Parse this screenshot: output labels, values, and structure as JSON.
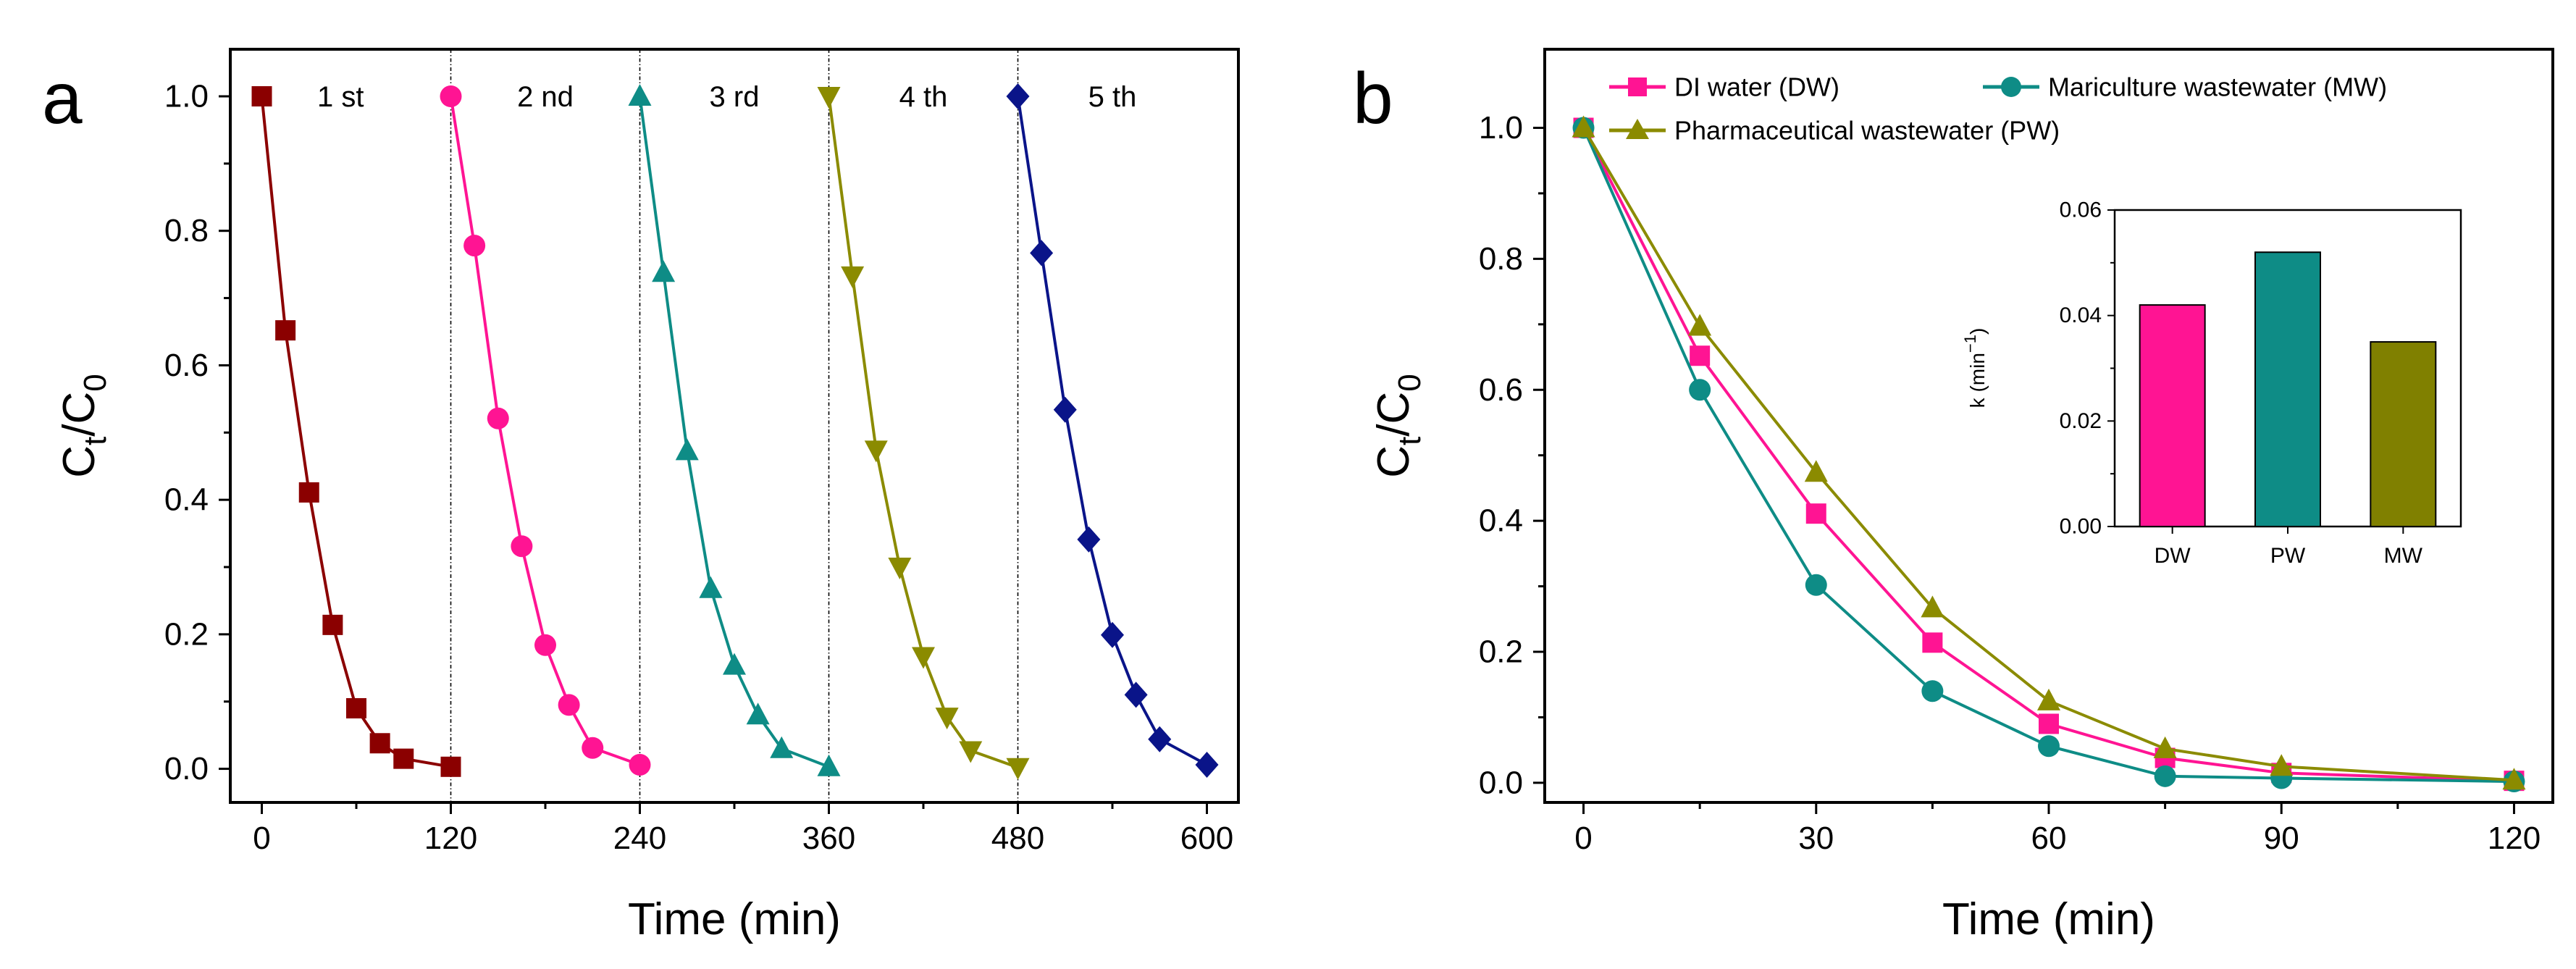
{
  "chart_data": [
    {
      "panel": "a",
      "type": "line",
      "xlabel": "Time (min)",
      "ylabel_main": "C",
      "ylabel_sub1": "t",
      "ylabel_sep": "/C",
      "ylabel_sub2": "0",
      "xlim": [
        -20,
        620
      ],
      "ylim": [
        -0.05,
        1.07
      ],
      "xticks": [
        0,
        120,
        240,
        360,
        480,
        600
      ],
      "xtick_labels": [
        "0",
        "120",
        "240",
        "360",
        "480",
        "600"
      ],
      "yticks": [
        0.0,
        0.2,
        0.4,
        0.6,
        0.8,
        1.0
      ],
      "ytick_labels": [
        "0.0",
        "0.2",
        "0.4",
        "0.6",
        "0.8",
        "1.0"
      ],
      "dividers_x": [
        120,
        240,
        360,
        480
      ],
      "series": [
        {
          "name": "1 st",
          "label": "1 st",
          "label_x": 50,
          "color": "#8B0000",
          "marker": "square",
          "x": [
            0,
            15,
            30,
            45,
            60,
            75,
            90,
            120
          ],
          "y": [
            1.0,
            0.652,
            0.411,
            0.214,
            0.09,
            0.038,
            0.015,
            0.003
          ]
        },
        {
          "name": "2 nd",
          "label": "2 nd",
          "label_x": 180,
          "color": "#FF1493",
          "marker": "circle",
          "x": [
            120,
            135,
            150,
            165,
            180,
            195,
            210,
            240
          ],
          "y": [
            1.0,
            0.778,
            0.521,
            0.331,
            0.184,
            0.095,
            0.031,
            0.006
          ]
        },
        {
          "name": "3 rd",
          "label": "3 rd",
          "label_x": 300,
          "color": "#0E8C86",
          "marker": "triangle-up",
          "x": [
            240,
            255,
            270,
            285,
            300,
            315,
            330,
            360
          ],
          "y": [
            1.0,
            0.738,
            0.473,
            0.268,
            0.154,
            0.08,
            0.03,
            0.003
          ]
        },
        {
          "name": "4 th",
          "label": "4 th",
          "label_x": 420,
          "color": "#8B8B00",
          "marker": "triangle-down",
          "x": [
            360,
            375,
            390,
            405,
            420,
            435,
            450,
            480
          ],
          "y": [
            1.0,
            0.733,
            0.474,
            0.3,
            0.167,
            0.077,
            0.027,
            0.002
          ]
        },
        {
          "name": "5 th",
          "label": "5 th",
          "label_x": 540,
          "color": "#0A1489",
          "marker": "diamond",
          "x": [
            480,
            495,
            510,
            525,
            540,
            555,
            570,
            600
          ],
          "y": [
            1.0,
            0.767,
            0.534,
            0.341,
            0.199,
            0.11,
            0.044,
            0.006
          ]
        }
      ]
    },
    {
      "panel": "b",
      "type": "line",
      "xlabel": "Time (min)",
      "ylabel_main": "C",
      "ylabel_sub1": "t",
      "ylabel_sep": "/C",
      "ylabel_sub2": "0",
      "xlim": [
        -5,
        125
      ],
      "ylim": [
        -0.03,
        1.12
      ],
      "xticks": [
        0,
        30,
        60,
        90,
        120
      ],
      "xtick_labels": [
        "0",
        "30",
        "60",
        "90",
        "120"
      ],
      "yticks": [
        0.0,
        0.2,
        0.4,
        0.6,
        0.8,
        1.0
      ],
      "ytick_labels": [
        "0.0",
        "0.2",
        "0.4",
        "0.6",
        "0.8",
        "1.0"
      ],
      "series": [
        {
          "name": "DI water (DW)",
          "color": "#FF1493",
          "marker": "square",
          "x": [
            0,
            15,
            30,
            45,
            60,
            75,
            90,
            120
          ],
          "y": [
            1.0,
            0.652,
            0.411,
            0.214,
            0.09,
            0.038,
            0.015,
            0.003
          ]
        },
        {
          "name": "Mariculture wastewater (MW)",
          "color": "#0E8C86",
          "marker": "circle",
          "x": [
            0,
            15,
            30,
            45,
            60,
            75,
            90,
            120
          ],
          "y": [
            1.0,
            0.6,
            0.302,
            0.14,
            0.056,
            0.01,
            0.007,
            0.002
          ]
        },
        {
          "name": "Pharmaceutical wastewater (PW)",
          "color": "#8B8B00",
          "marker": "triangle-up",
          "x": [
            0,
            15,
            30,
            45,
            60,
            75,
            90,
            120
          ],
          "y": [
            1.0,
            0.697,
            0.474,
            0.267,
            0.125,
            0.052,
            0.025,
            0.004
          ]
        }
      ],
      "inset": {
        "type": "bar",
        "ylabel_main": "k (min",
        "ylabel_exp": "−1",
        "ylabel_close": ")",
        "ylim": [
          0,
          0.06
        ],
        "yticks": [
          0.0,
          0.02,
          0.04,
          0.06
        ],
        "ytick_labels": [
          "0.00",
          "0.02",
          "0.04",
          "0.06"
        ],
        "categories": [
          "DW",
          "PW",
          "MW"
        ],
        "values": [
          0.042,
          0.052,
          0.035
        ],
        "colors": [
          "#FF1493",
          "#0E8C86",
          "#808000"
        ]
      }
    }
  ]
}
